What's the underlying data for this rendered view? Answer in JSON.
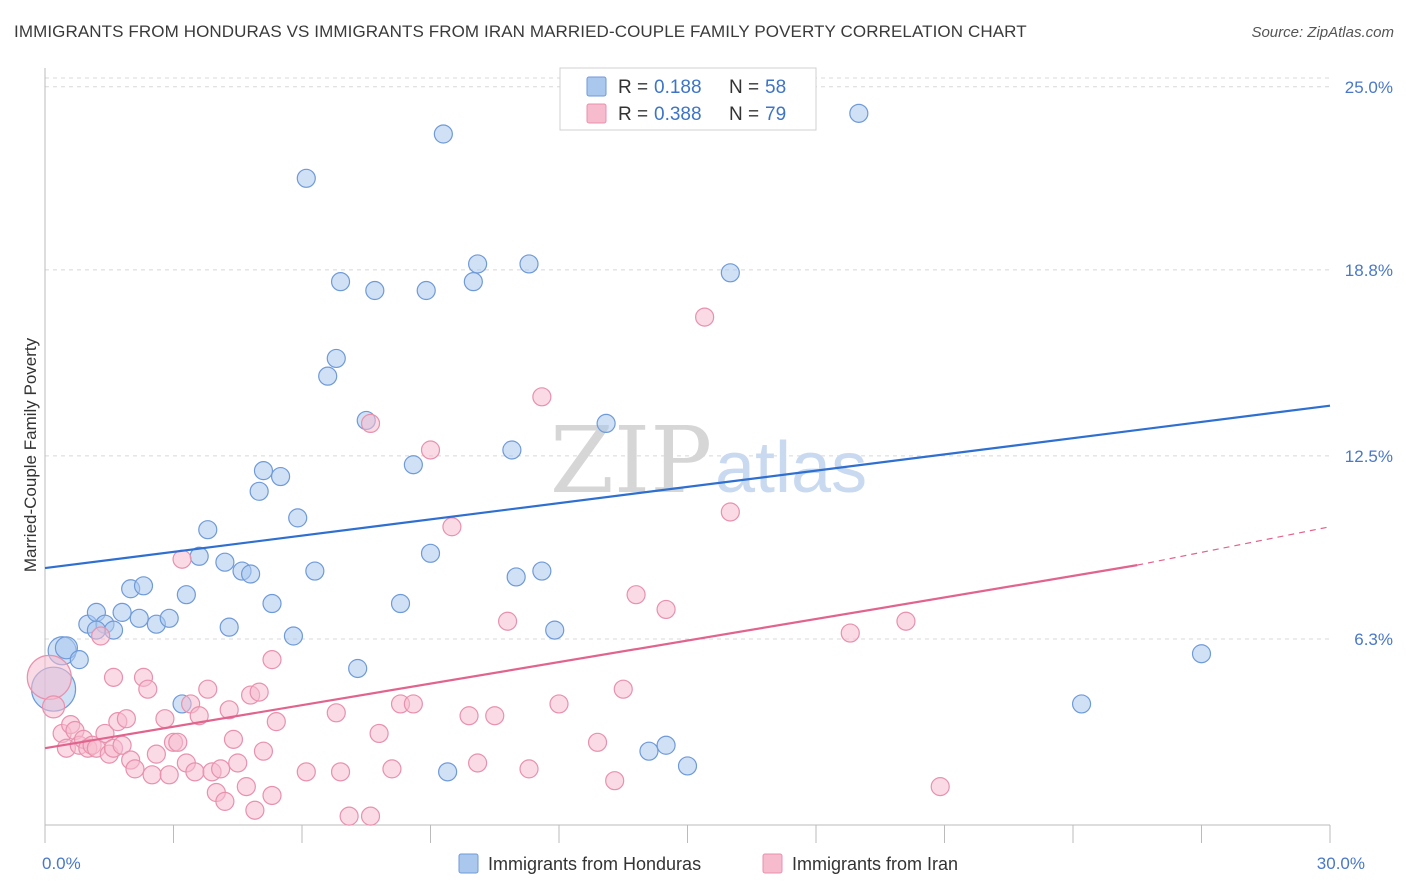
{
  "title": "IMMIGRANTS FROM HONDURAS VS IMMIGRANTS FROM IRAN MARRIED-COUPLE FAMILY POVERTY CORRELATION CHART",
  "source": "Source: ZipAtlas.com",
  "watermark": {
    "zip": "ZIP",
    "atlas": "atlas"
  },
  "colors": {
    "honduras_fill": "#aac8ee",
    "honduras_stroke": "#6f9ad8",
    "honduras_line": "#2f6fcf",
    "iran_fill": "#f6bccd",
    "iran_stroke": "#e891ad",
    "iran_line": "#e0648e",
    "grid": "#d8d8d8",
    "axis": "#bbbbbb"
  },
  "legend": {
    "rows": [
      {
        "r_label": "R =",
        "r_value": "0.188",
        "n_label": "N =",
        "n_value": "58"
      },
      {
        "r_label": "R =",
        "r_value": "0.388",
        "n_label": "N =",
        "n_value": "79"
      }
    ]
  },
  "chart_data": {
    "type": "scatter",
    "title": "IMMIGRANTS FROM HONDURAS VS IMMIGRANTS FROM IRAN MARRIED-COUPLE FAMILY POVERTY CORRELATION CHART",
    "xlabel": "",
    "ylabel": "Married-Couple Family Poverty",
    "xlim": [
      0,
      30
    ],
    "ylim": [
      0,
      25.5
    ],
    "x_tick_labels": [
      {
        "value": 0,
        "label": "0.0%"
      },
      {
        "value": 30,
        "label": "30.0%"
      }
    ],
    "y_tick_labels": [
      {
        "value": 6.3,
        "label": "6.3%"
      },
      {
        "value": 12.5,
        "label": "12.5%"
      },
      {
        "value": 18.8,
        "label": "18.8%"
      },
      {
        "value": 25.0,
        "label": "25.0%"
      }
    ],
    "grid": true,
    "legend_position": "top-center",
    "series": [
      {
        "name": "Immigrants from Honduras",
        "r": 0.188,
        "n": 58,
        "trend": {
          "x": [
            0,
            30
          ],
          "y": [
            8.7,
            14.2
          ]
        },
        "points": [
          [
            0.2,
            4.6,
            22
          ],
          [
            0.4,
            5.9,
            14
          ],
          [
            0.5,
            6.0,
            11
          ],
          [
            0.8,
            5.6,
            9
          ],
          [
            1.0,
            6.8,
            9
          ],
          [
            1.2,
            7.2,
            9
          ],
          [
            1.4,
            6.8,
            9
          ],
          [
            1.6,
            6.6,
            9
          ],
          [
            1.8,
            7.2,
            9
          ],
          [
            2.0,
            8.0,
            9
          ],
          [
            2.2,
            7.0,
            9
          ],
          [
            2.3,
            8.1,
            9
          ],
          [
            2.6,
            6.8,
            9
          ],
          [
            2.9,
            7.0,
            9
          ],
          [
            3.3,
            7.8,
            9
          ],
          [
            3.6,
            9.1,
            9
          ],
          [
            3.8,
            10.0,
            9
          ],
          [
            4.2,
            8.9,
            9
          ],
          [
            4.3,
            6.7,
            9
          ],
          [
            4.6,
            8.6,
            9
          ],
          [
            4.8,
            8.5,
            9
          ],
          [
            5.0,
            11.3,
            9
          ],
          [
            5.1,
            12.0,
            9
          ],
          [
            5.5,
            11.8,
            9
          ],
          [
            5.3,
            7.5,
            9
          ],
          [
            5.9,
            10.4,
            9
          ],
          [
            5.8,
            6.4,
            9
          ],
          [
            6.1,
            21.9,
            9
          ],
          [
            6.3,
            8.6,
            9
          ],
          [
            6.6,
            15.2,
            9
          ],
          [
            6.8,
            15.8,
            9
          ],
          [
            6.9,
            18.4,
            9
          ],
          [
            7.3,
            5.3,
            9
          ],
          [
            7.5,
            13.7,
            9
          ],
          [
            7.7,
            18.1,
            9
          ],
          [
            8.3,
            7.5,
            9
          ],
          [
            8.6,
            12.2,
            9
          ],
          [
            8.9,
            18.1,
            9
          ],
          [
            9.0,
            9.2,
            9
          ],
          [
            9.3,
            23.4,
            9
          ],
          [
            9.4,
            1.8,
            9
          ],
          [
            10.0,
            18.4,
            9
          ],
          [
            10.1,
            19.0,
            9
          ],
          [
            10.9,
            12.7,
            9
          ],
          [
            11.0,
            8.4,
            9
          ],
          [
            11.3,
            19.0,
            9
          ],
          [
            11.6,
            8.6,
            9
          ],
          [
            11.9,
            6.6,
            9
          ],
          [
            13.1,
            13.6,
            9
          ],
          [
            14.1,
            2.5,
            9
          ],
          [
            14.5,
            2.7,
            9
          ],
          [
            15.0,
            2.0,
            9
          ],
          [
            16.0,
            18.7,
            9
          ],
          [
            19.0,
            24.1,
            9
          ],
          [
            24.2,
            4.1,
            9
          ],
          [
            27.0,
            5.8,
            9
          ],
          [
            3.2,
            4.1,
            9
          ],
          [
            1.2,
            6.6,
            9
          ]
        ]
      },
      {
        "name": "Immigrants from Iran",
        "r": 0.388,
        "n": 79,
        "trend": {
          "x": [
            0,
            25.5
          ],
          "y": [
            2.6,
            8.8
          ]
        },
        "trend_dashed": {
          "x": [
            25.5,
            30
          ],
          "y": [
            8.8,
            10.1
          ]
        },
        "points": [
          [
            0.1,
            5.0,
            22
          ],
          [
            0.2,
            4.0,
            11
          ],
          [
            0.4,
            3.1,
            9
          ],
          [
            0.5,
            2.6,
            9
          ],
          [
            0.6,
            3.4,
            9
          ],
          [
            0.7,
            3.2,
            9
          ],
          [
            0.8,
            2.7,
            9
          ],
          [
            0.9,
            2.9,
            9
          ],
          [
            1.0,
            2.6,
            9
          ],
          [
            1.1,
            2.7,
            9
          ],
          [
            1.2,
            2.6,
            9
          ],
          [
            1.3,
            6.4,
            9
          ],
          [
            1.4,
            3.1,
            9
          ],
          [
            1.5,
            2.4,
            9
          ],
          [
            1.6,
            2.6,
            9
          ],
          [
            1.7,
            3.5,
            9
          ],
          [
            1.8,
            2.7,
            9
          ],
          [
            1.9,
            3.6,
            9
          ],
          [
            2.0,
            2.2,
            9
          ],
          [
            2.1,
            1.9,
            9
          ],
          [
            2.3,
            5.0,
            9
          ],
          [
            2.4,
            4.6,
            9
          ],
          [
            2.5,
            1.7,
            9
          ],
          [
            2.6,
            2.4,
            9
          ],
          [
            2.8,
            3.6,
            9
          ],
          [
            2.9,
            1.7,
            9
          ],
          [
            3.0,
            2.8,
            9
          ],
          [
            3.1,
            2.8,
            9
          ],
          [
            3.2,
            9.0,
            9
          ],
          [
            3.3,
            2.1,
            9
          ],
          [
            3.4,
            4.1,
            9
          ],
          [
            3.5,
            1.8,
            9
          ],
          [
            3.6,
            3.7,
            9
          ],
          [
            3.8,
            4.6,
            9
          ],
          [
            3.9,
            1.8,
            9
          ],
          [
            4.0,
            1.1,
            9
          ],
          [
            4.1,
            1.9,
            9
          ],
          [
            4.2,
            0.8,
            9
          ],
          [
            4.3,
            3.9,
            9
          ],
          [
            4.4,
            2.9,
            9
          ],
          [
            4.5,
            2.1,
            9
          ],
          [
            4.7,
            1.3,
            9
          ],
          [
            4.8,
            4.4,
            9
          ],
          [
            4.9,
            0.5,
            9
          ],
          [
            5.0,
            4.5,
            9
          ],
          [
            5.1,
            2.5,
            9
          ],
          [
            5.3,
            1.0,
            9
          ],
          [
            5.4,
            3.5,
            9
          ],
          [
            5.3,
            5.6,
            9
          ],
          [
            6.1,
            1.8,
            9
          ],
          [
            6.8,
            3.8,
            9
          ],
          [
            6.9,
            1.8,
            9
          ],
          [
            7.1,
            0.3,
            9
          ],
          [
            7.6,
            0.3,
            9
          ],
          [
            7.8,
            3.1,
            9
          ],
          [
            8.1,
            1.9,
            9
          ],
          [
            8.3,
            4.1,
            9
          ],
          [
            8.6,
            4.1,
            9
          ],
          [
            9.0,
            12.7,
            9
          ],
          [
            9.5,
            10.1,
            9
          ],
          [
            9.9,
            3.7,
            9
          ],
          [
            10.1,
            2.1,
            9
          ],
          [
            10.5,
            3.7,
            9
          ],
          [
            10.8,
            6.9,
            9
          ],
          [
            11.3,
            1.9,
            9
          ],
          [
            11.6,
            14.5,
            9
          ],
          [
            12.0,
            4.1,
            9
          ],
          [
            12.9,
            2.8,
            9
          ],
          [
            13.3,
            1.5,
            9
          ],
          [
            13.5,
            4.6,
            9
          ],
          [
            13.8,
            7.8,
            9
          ],
          [
            14.5,
            7.3,
            9
          ],
          [
            15.4,
            17.2,
            9
          ],
          [
            16.0,
            10.6,
            9
          ],
          [
            18.8,
            6.5,
            9
          ],
          [
            20.1,
            6.9,
            9
          ],
          [
            20.9,
            1.3,
            9
          ],
          [
            7.6,
            13.6,
            9
          ],
          [
            1.6,
            5.0,
            9
          ]
        ]
      }
    ]
  }
}
